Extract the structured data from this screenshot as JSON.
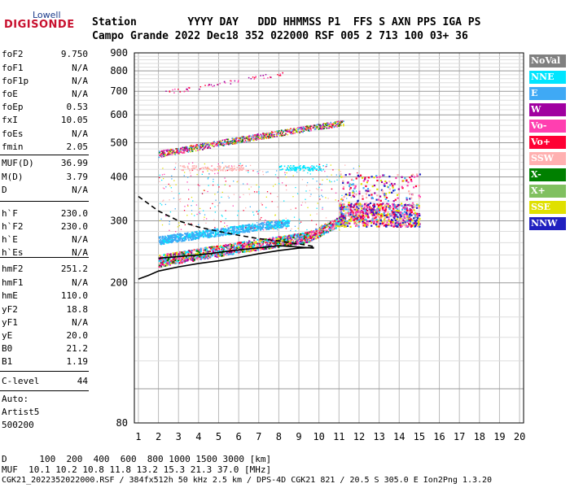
{
  "logo": {
    "top": "Lowell",
    "main": "DIGISONDE"
  },
  "header": {
    "row1": "Station        YYYY DAY   DDD HHMMSS P1  FFS S AXN PPS IGA PS",
    "row2": "Campo Grande 2022 Dec18 352 022000 RSF 005 2 713 100 03+ 36"
  },
  "params": [
    {
      "k": "foF2",
      "v": "9.750"
    },
    {
      "k": "foF1",
      "v": "N/A"
    },
    {
      "k": "foF1p",
      "v": "N/A"
    },
    {
      "k": "foE",
      "v": "N/A"
    },
    {
      "k": "foEp",
      "v": "0.53"
    },
    {
      "k": "fxI",
      "v": "10.05"
    },
    {
      "k": "foEs",
      "v": "N/A"
    },
    {
      "k": "fmin",
      "v": "2.05"
    },
    {
      "k": "MUF(D)",
      "v": "36.99"
    },
    {
      "k": "M(D)",
      "v": "3.79"
    },
    {
      "k": "D",
      "v": "N/A"
    },
    {
      "k": "h`F",
      "v": "230.0"
    },
    {
      "k": "h`F2",
      "v": "230.0"
    },
    {
      "k": "h`E",
      "v": "N/A"
    },
    {
      "k": "h`Es",
      "v": "N/A"
    },
    {
      "k": "hmF2",
      "v": "251.2"
    },
    {
      "k": "hmF1",
      "v": "N/A"
    },
    {
      "k": "hmE",
      "v": "110.0"
    },
    {
      "k": "yF2",
      "v": "18.8"
    },
    {
      "k": "yF1",
      "v": "N/A"
    },
    {
      "k": "yE",
      "v": "20.0"
    },
    {
      "k": "B0",
      "v": "21.2"
    },
    {
      "k": "B1",
      "v": "1.19"
    },
    {
      "k": "C-level",
      "v": "44"
    }
  ],
  "auto": {
    "l1": "Auto:",
    "l2": "Artist5",
    "l3": "500200"
  },
  "legend": [
    {
      "label": "NoVal",
      "color": "#808080"
    },
    {
      "label": "NNE",
      "color": "#00e5ff"
    },
    {
      "label": "E",
      "color": "#3fa9f5"
    },
    {
      "label": "W",
      "color": "#a000a0"
    },
    {
      "label": "Vo-",
      "color": "#ff3fb0"
    },
    {
      "label": "Vo+",
      "color": "#ff0033"
    },
    {
      "label": "SSW",
      "color": "#ffb0b0"
    },
    {
      "label": "X-",
      "color": "#008000"
    },
    {
      "label": "X+",
      "color": "#80c060"
    },
    {
      "label": "SSE",
      "color": "#e0e000"
    },
    {
      "label": "NNW",
      "color": "#2020c0"
    }
  ],
  "chart_data": {
    "type": "scatter",
    "x_ticks": [
      "1",
      "2",
      "3",
      "4",
      "5",
      "6",
      "7",
      "8",
      "9",
      "10",
      "11",
      "12",
      "13",
      "14",
      "15",
      "16",
      "17",
      "18",
      "19",
      "20"
    ],
    "y_ticks": [
      "80",
      "200",
      "300",
      "400",
      "500",
      "600",
      "700",
      "800",
      "900"
    ],
    "xlim": [
      0.8,
      20.2
    ],
    "y_scale": "log",
    "ylim": [
      80,
      900
    ],
    "grid": true,
    "legend_position": "right"
  },
  "footer": {
    "l1": "D      100  200  400  600  800 1000 1500 3000 [km]",
    "l2": "MUF  10.1 10.2 10.8 11.8 13.2 15.3 21.3 37.0 [MHz]",
    "l3": "CGK21_2022352022000.RSF / 384fx512h 50 kHz 2.5 km / DPS-4D CGK21 821 / 20.5 S 305.0 E Ion2Png 1.3.20"
  }
}
